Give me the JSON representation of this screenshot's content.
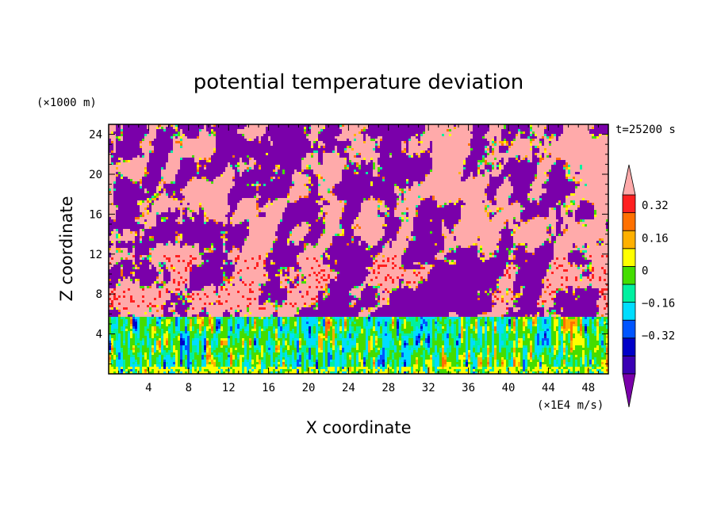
{
  "chart_data": {
    "type": "heatmap",
    "title": "potential temperature deviation",
    "xlabel": "X coordinate",
    "ylabel": "Z coordinate",
    "x_unit": "(×1E4 m/s)",
    "y_unit": "(×1000 m)",
    "time_label": "t=25200 s",
    "xlim": [
      0,
      50
    ],
    "ylim": [
      0,
      25
    ],
    "x_ticks": [
      "4",
      "8",
      "12",
      "16",
      "20",
      "24",
      "28",
      "32",
      "36",
      "40",
      "44",
      "48"
    ],
    "y_ticks": [
      "4",
      "8",
      "12",
      "16",
      "20",
      "24"
    ],
    "colorbar": {
      "levels": [
        -0.48,
        -0.4,
        -0.32,
        -0.24,
        -0.16,
        -0.08,
        0,
        0.08,
        0.16,
        0.24,
        0.32,
        0.4
      ],
      "tick_labels": [
        "0.32",
        "0.16",
        "0",
        "−0.16",
        "−0.32"
      ],
      "tick_values": [
        0.32,
        0.16,
        0,
        -0.16,
        -0.32
      ],
      "colors": [
        "#7a00aa",
        "#3a00b4",
        "#0000c8",
        "#0055ff",
        "#00ddff",
        "#00f0a0",
        "#44dd00",
        "#ffff00",
        "#ffb000",
        "#ff7000",
        "#ff2020",
        "#ffaaaa"
      ],
      "over_color": "#ffaaaa",
      "under_color": "#7a00aa"
    },
    "regions": [
      {
        "z_range": [
          0,
          6
        ],
        "description": "turbulent mixed layer: blue / cyan / green / yellow / red bands"
      },
      {
        "z_range": [
          6,
          25
        ],
        "description": "alternating purple and pink patches with scattered orange/red near z 6-12"
      }
    ]
  }
}
